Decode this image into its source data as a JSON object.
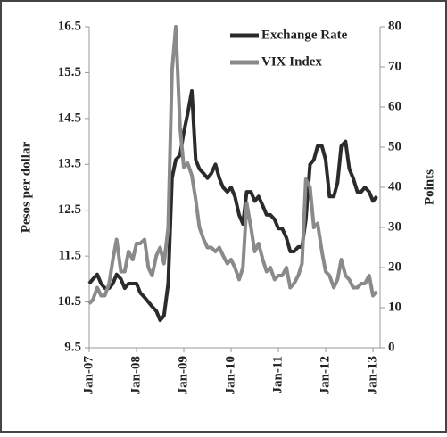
{
  "chart_data": {
    "type": "line",
    "y_label": "Pesos per dollar",
    "y2_label": "Points",
    "x": [
      2007.0,
      2007.08,
      2007.17,
      2007.25,
      2007.33,
      2007.42,
      2007.5,
      2007.58,
      2007.67,
      2007.75,
      2007.83,
      2007.92,
      2008.0,
      2008.08,
      2008.17,
      2008.25,
      2008.33,
      2008.42,
      2008.5,
      2008.58,
      2008.67,
      2008.75,
      2008.83,
      2008.92,
      2009.0,
      2009.08,
      2009.17,
      2009.25,
      2009.33,
      2009.42,
      2009.5,
      2009.58,
      2009.67,
      2009.75,
      2009.83,
      2009.92,
      2010.0,
      2010.08,
      2010.17,
      2010.25,
      2010.33,
      2010.42,
      2010.5,
      2010.58,
      2010.67,
      2010.75,
      2010.83,
      2010.92,
      2011.0,
      2011.08,
      2011.17,
      2011.25,
      2011.33,
      2011.42,
      2011.5,
      2011.58,
      2011.67,
      2011.75,
      2011.83,
      2011.92,
      2012.0,
      2012.08,
      2012.17,
      2012.25,
      2012.33,
      2012.42,
      2012.5,
      2012.58,
      2012.67,
      2012.75,
      2012.83,
      2012.92,
      2013.0,
      2013.08
    ],
    "series": [
      {
        "name": "Exchange Rate",
        "color": "#2b2b2b",
        "values": [
          10.9,
          11.0,
          11.1,
          10.9,
          10.8,
          10.8,
          10.9,
          11.1,
          11.0,
          10.8,
          10.9,
          10.9,
          10.9,
          10.7,
          10.6,
          10.5,
          10.4,
          10.3,
          10.1,
          10.2,
          10.9,
          13.2,
          13.6,
          13.7,
          14.2,
          14.6,
          15.1,
          13.6,
          13.4,
          13.3,
          13.2,
          13.3,
          13.5,
          13.2,
          13.0,
          12.9,
          13.0,
          12.8,
          12.4,
          12.2,
          12.9,
          12.9,
          12.7,
          12.8,
          12.6,
          12.4,
          12.4,
          12.3,
          12.1,
          12.1,
          11.9,
          11.6,
          11.6,
          11.7,
          11.7,
          12.3,
          13.5,
          13.6,
          13.9,
          13.9,
          13.6,
          12.8,
          12.8,
          13.1,
          13.9,
          14.0,
          13.4,
          13.2,
          12.9,
          12.9,
          13.0,
          12.9,
          12.7,
          12.8
        ]
      },
      {
        "name": "VIX Index",
        "color": "#8a8a8a",
        "axis": "y2",
        "values": [
          11,
          12,
          15,
          13,
          13,
          16,
          22,
          27,
          19,
          19,
          24,
          22,
          26,
          26,
          27,
          20,
          18,
          23,
          25,
          21,
          30,
          69,
          80,
          55,
          45,
          46,
          43,
          37,
          30,
          27,
          25,
          25,
          24,
          25,
          23,
          21,
          22,
          20,
          17,
          20,
          36,
          30,
          24,
          26,
          22,
          19,
          20,
          17,
          18,
          18,
          20,
          15,
          16,
          18,
          21,
          42,
          40,
          30,
          31,
          24,
          19,
          18,
          15,
          17,
          22,
          18,
          17,
          15,
          15,
          16,
          16,
          18,
          13,
          14
        ]
      }
    ],
    "xlim": [
      2007,
      2013.15
    ],
    "xticks": [
      {
        "value": 2007,
        "label": "Jan-07"
      },
      {
        "value": 2008,
        "label": "Jan-08"
      },
      {
        "value": 2009,
        "label": "Jan-09"
      },
      {
        "value": 2010,
        "label": "Jan-10"
      },
      {
        "value": 2011,
        "label": "Jan-11"
      },
      {
        "value": 2012,
        "label": "Jan-12"
      },
      {
        "value": 2013,
        "label": "Jan-13"
      }
    ],
    "ylim": [
      9.5,
      16.5
    ],
    "yticks": [
      9.5,
      10.5,
      11.5,
      12.5,
      13.5,
      14.5,
      15.5,
      16.5
    ],
    "y2lim": [
      0,
      80
    ],
    "y2ticks": [
      0,
      10,
      20,
      30,
      40,
      50,
      60,
      70,
      80
    ],
    "legend": "top-right"
  }
}
